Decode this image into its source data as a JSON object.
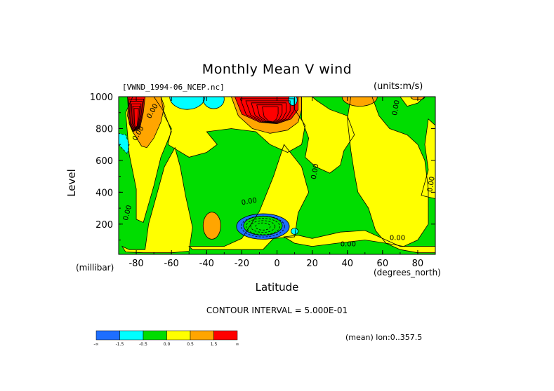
{
  "chart_data": {
    "type": "heatmap",
    "title": "Monthly Mean V wind",
    "dataset_label": "[VWND_1994-06_NCEP.nc]",
    "units_label": "(units:m/s)",
    "xlabel": "Latitude",
    "x_units": "(degrees_north)",
    "ylabel": "Level",
    "y_units": "(millibar)",
    "xlim": [
      -90,
      90
    ],
    "ylim": [
      1000,
      10
    ],
    "x_ticks": [
      -80,
      -60,
      -40,
      -20,
      0,
      20,
      40,
      60,
      80
    ],
    "x_tick_labels": [
      "-80",
      "-60",
      "-40",
      "-20",
      "0",
      "20",
      "40",
      "60",
      "80"
    ],
    "y_ticks": [
      200,
      400,
      600,
      800,
      1000
    ],
    "y_tick_labels": [
      "200",
      "400",
      "600",
      "800",
      "1000"
    ],
    "contour_interval_text": "CONTOUR INTERVAL = 5.000E-01",
    "contour_labels": [
      "0.00",
      "0.00",
      "0.00",
      "0.00",
      "0.00",
      "0.00",
      "0.00",
      "0.00",
      "0.00"
    ],
    "footnote": "(mean) lon:0..357.5",
    "legend": {
      "colors": [
        "#1e6eff",
        "#00ffff",
        "#00dd00",
        "#ffff00",
        "#ffa500",
        "#ff0000"
      ],
      "labels": [
        "-∞",
        "-1.5",
        "-0.5",
        "0.0",
        "0.5",
        "1.5",
        "∞"
      ]
    },
    "background_level_color": "#00dd00",
    "regions": [
      {
        "type": "poly",
        "level": 3,
        "pts": [
          [
            -84,
            40
          ],
          [
            -75,
            40
          ],
          [
            -73,
            200
          ],
          [
            -68,
            400
          ],
          [
            -64,
            560
          ],
          [
            -58,
            680
          ],
          [
            -55,
            560
          ],
          [
            -52,
            380
          ],
          [
            -48,
            180
          ],
          [
            -50,
            30
          ],
          [
            -60,
            20
          ],
          [
            -76,
            20
          ],
          [
            -86,
            25
          ],
          [
            -88,
            60
          ]
        ]
      },
      {
        "type": "poly",
        "level": 3,
        "pts": [
          [
            -76,
            210
          ],
          [
            -70,
            440
          ],
          [
            -66,
            620
          ],
          [
            -60,
            780
          ],
          [
            -64,
            900
          ],
          [
            -70,
            1000
          ],
          [
            -82,
            1000
          ],
          [
            -86,
            900
          ],
          [
            -84,
            640
          ],
          [
            -80,
            420
          ],
          [
            -80,
            230
          ]
        ]
      },
      {
        "type": "poly",
        "level": 3,
        "pts": [
          [
            -50,
            60
          ],
          [
            -30,
            60
          ],
          [
            -20,
            110
          ],
          [
            -10,
            280
          ],
          [
            -2,
            500
          ],
          [
            4,
            700
          ],
          [
            14,
            560
          ],
          [
            18,
            400
          ],
          [
            12,
            270
          ],
          [
            10,
            120
          ],
          [
            -2,
            110
          ],
          [
            -8,
            40
          ],
          [
            -48,
            40
          ]
        ]
      },
      {
        "type": "poly",
        "level": 3,
        "pts": [
          [
            -62,
            700
          ],
          [
            -50,
            620
          ],
          [
            -40,
            650
          ],
          [
            -34,
            700
          ],
          [
            -40,
            780
          ],
          [
            -26,
            800
          ],
          [
            -12,
            780
          ],
          [
            -4,
            700
          ],
          [
            6,
            650
          ],
          [
            14,
            700
          ],
          [
            16,
            820
          ],
          [
            10,
            920
          ],
          [
            10,
            1000
          ],
          [
            -66,
            1000
          ],
          [
            -64,
            880
          ],
          [
            -60,
            800
          ]
        ]
      },
      {
        "type": "poly",
        "level": 3,
        "pts": [
          [
            16,
            620
          ],
          [
            22,
            560
          ],
          [
            30,
            520
          ],
          [
            36,
            570
          ],
          [
            38,
            660
          ],
          [
            44,
            760
          ],
          [
            40,
            880
          ],
          [
            30,
            920
          ],
          [
            22,
            980
          ],
          [
            20,
            1000
          ],
          [
            14,
            1000
          ],
          [
            14,
            860
          ],
          [
            18,
            740
          ]
        ]
      },
      {
        "type": "poly",
        "level": 3,
        "pts": [
          [
            42,
            660
          ],
          [
            44,
            520
          ],
          [
            46,
            400
          ],
          [
            52,
            300
          ],
          [
            56,
            160
          ],
          [
            62,
            80
          ],
          [
            72,
            60
          ],
          [
            80,
            100
          ],
          [
            86,
            200
          ],
          [
            86,
            420
          ],
          [
            84,
            600
          ],
          [
            80,
            700
          ],
          [
            74,
            760
          ],
          [
            64,
            800
          ],
          [
            58,
            880
          ],
          [
            54,
            1000
          ],
          [
            42,
            1000
          ],
          [
            40,
            860
          ]
        ]
      },
      {
        "type": "poly",
        "level": 3,
        "pts": [
          [
            4,
            120
          ],
          [
            10,
            80
          ],
          [
            20,
            60
          ],
          [
            34,
            80
          ],
          [
            50,
            100
          ],
          [
            62,
            80
          ],
          [
            70,
            40
          ],
          [
            80,
            20
          ],
          [
            90,
            20
          ],
          [
            90,
            60
          ],
          [
            80,
            60
          ],
          [
            70,
            60
          ],
          [
            60,
            110
          ],
          [
            50,
            160
          ],
          [
            36,
            150
          ],
          [
            20,
            110
          ],
          [
            12,
            130
          ]
        ]
      },
      {
        "type": "poly",
        "level": 3,
        "pts": [
          [
            82,
            380
          ],
          [
            90,
            360
          ],
          [
            90,
            820
          ],
          [
            86,
            860
          ],
          [
            84,
            700
          ],
          [
            86,
            540
          ]
        ]
      },
      {
        "type": "poly",
        "level": 3,
        "pts": [
          [
            70,
            1000
          ],
          [
            74,
            940
          ],
          [
            80,
            960
          ],
          [
            84,
            1000
          ]
        ]
      },
      {
        "type": "ellipse",
        "level": 4,
        "cx": -37,
        "cy": 190,
        "rx": 5,
        "ry": 85
      },
      {
        "type": "poly",
        "level": 4,
        "pts": [
          [
            -82,
            780
          ],
          [
            -77,
            690
          ],
          [
            -74,
            680
          ],
          [
            -70,
            740
          ],
          [
            -66,
            840
          ],
          [
            -64,
            940
          ],
          [
            -66,
            1000
          ],
          [
            -84,
            1000
          ],
          [
            -85,
            880
          ]
        ]
      },
      {
        "type": "poly",
        "level": 4,
        "pts": [
          [
            -26,
            1000
          ],
          [
            -22,
            880
          ],
          [
            -14,
            800
          ],
          [
            -4,
            770
          ],
          [
            6,
            790
          ],
          [
            12,
            840
          ],
          [
            14,
            920
          ],
          [
            14,
            1000
          ]
        ]
      },
      {
        "type": "ellipse",
        "level": 4,
        "cx": 47,
        "cy": 1000,
        "rx": 10,
        "ry": 60
      },
      {
        "type": "ellipse",
        "level": 4,
        "cx": 80,
        "cy": 1000,
        "rx": 4,
        "ry": 20
      },
      {
        "type": "poly",
        "level": 5,
        "pts": [
          [
            -84,
            830
          ],
          [
            -82,
            780
          ],
          [
            -78,
            800
          ],
          [
            -76,
            900
          ],
          [
            -75,
            1000
          ],
          [
            -85,
            1000
          ]
        ]
      },
      {
        "type": "poly",
        "level": 5,
        "pts": [
          [
            -24,
            1000
          ],
          [
            -20,
            890
          ],
          [
            -10,
            840
          ],
          [
            0,
            830
          ],
          [
            8,
            860
          ],
          [
            12,
            920
          ],
          [
            12,
            1000
          ]
        ]
      },
      {
        "type": "ellipse",
        "level": 1,
        "cx": -51,
        "cy": 1000,
        "rx": 10,
        "ry": 80
      },
      {
        "type": "ellipse",
        "level": 1,
        "cx": -36,
        "cy": 985,
        "rx": 6,
        "ry": 60
      },
      {
        "type": "ellipse",
        "level": 1,
        "cx": 9,
        "cy": 980,
        "rx": 2.5,
        "ry": 35
      },
      {
        "type": "poly",
        "level": 1,
        "pts": [
          [
            -90,
            700
          ],
          [
            -85,
            640
          ],
          [
            -84,
            700
          ],
          [
            -86,
            760
          ],
          [
            -90,
            770
          ]
        ]
      },
      {
        "type": "ellipse",
        "level": 1,
        "cx": 10,
        "cy": 155,
        "rx": 2,
        "ry": 20
      },
      {
        "type": "ellipse",
        "level": 0,
        "cx": -8,
        "cy": 185,
        "rx": 15,
        "ry": 80
      },
      {
        "type": "ellipse",
        "level": 2,
        "cx": -8,
        "cy": 190,
        "rx": 11,
        "ry": 60
      }
    ]
  }
}
